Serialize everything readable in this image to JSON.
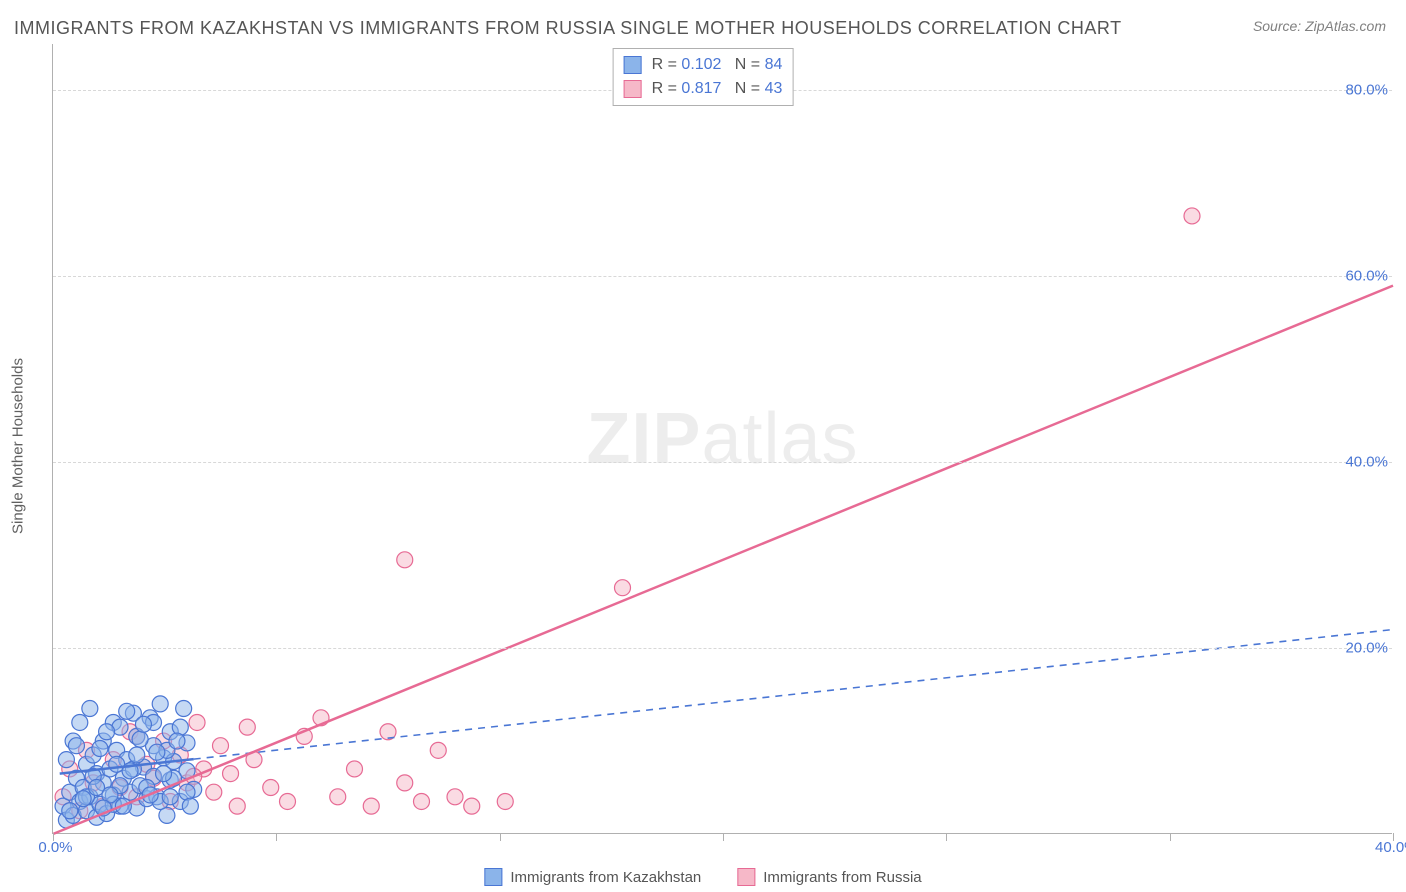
{
  "title": "IMMIGRANTS FROM KAZAKHSTAN VS IMMIGRANTS FROM RUSSIA SINGLE MOTHER HOUSEHOLDS CORRELATION CHART",
  "source_label": "Source: ZipAtlas.com",
  "ylabel": "Single Mother Households",
  "watermark": {
    "bold": "ZIP",
    "rest": "atlas"
  },
  "chart": {
    "type": "scatter-with-regression",
    "xlim": [
      0,
      40
    ],
    "ylim": [
      0,
      85
    ],
    "xtick_positions": [
      0,
      6.67,
      13.33,
      20,
      26.67,
      33.33,
      40
    ],
    "xtick_labels": [
      "0.0%",
      "",
      "",
      "",
      "",
      "",
      "40.0%"
    ],
    "ytick_positions": [
      20,
      40,
      60,
      80
    ],
    "ytick_labels": [
      "20.0%",
      "40.0%",
      "60.0%",
      "80.0%"
    ],
    "grid_color": "#d8d8d8",
    "axis_color": "#b0b0b0",
    "tick_label_color": "#4a76d4",
    "background_color": "#ffffff",
    "marker_radius": 8,
    "marker_stroke_width": 1.2,
    "line_width": 2.5,
    "series": [
      {
        "name": "Immigrants from Kazakhstan",
        "fill_color": "#8bb4ea",
        "stroke_color": "#4a76d4",
        "fill_opacity": 0.5,
        "R": "0.102",
        "N": "84",
        "regression": {
          "x1": 0.2,
          "y1": 6.5,
          "x2": 40,
          "y2": 22,
          "dashed": true
        },
        "line_solid_until_x": 4.2,
        "points": [
          [
            0.3,
            3.0
          ],
          [
            0.4,
            1.5
          ],
          [
            0.5,
            4.5
          ],
          [
            0.6,
            2.0
          ],
          [
            0.7,
            6.0
          ],
          [
            0.8,
            3.5
          ],
          [
            0.9,
            5.0
          ],
          [
            1.0,
            2.5
          ],
          [
            1.0,
            7.5
          ],
          [
            1.1,
            4.0
          ],
          [
            1.2,
            8.5
          ],
          [
            1.3,
            1.8
          ],
          [
            1.3,
            6.5
          ],
          [
            1.4,
            3.2
          ],
          [
            1.5,
            10.0
          ],
          [
            1.5,
            5.5
          ],
          [
            1.6,
            2.2
          ],
          [
            1.7,
            7.0
          ],
          [
            1.8,
            12.0
          ],
          [
            1.8,
            4.2
          ],
          [
            1.9,
            9.0
          ],
          [
            2.0,
            3.0
          ],
          [
            2.0,
            11.5
          ],
          [
            2.1,
            6.0
          ],
          [
            2.2,
            8.0
          ],
          [
            2.3,
            4.5
          ],
          [
            2.4,
            13.0
          ],
          [
            2.5,
            2.8
          ],
          [
            2.5,
            10.5
          ],
          [
            2.6,
            5.2
          ],
          [
            2.7,
            7.2
          ],
          [
            2.8,
            3.8
          ],
          [
            2.9,
            12.5
          ],
          [
            3.0,
            6.2
          ],
          [
            3.0,
            9.5
          ],
          [
            3.1,
            4.0
          ],
          [
            3.2,
            14.0
          ],
          [
            3.3,
            8.2
          ],
          [
            3.4,
            2.0
          ],
          [
            3.5,
            11.0
          ],
          [
            3.5,
            5.8
          ],
          [
            3.6,
            7.8
          ],
          [
            3.8,
            3.5
          ],
          [
            3.9,
            13.5
          ],
          [
            4.0,
            6.8
          ],
          [
            4.0,
            9.8
          ],
          [
            4.2,
            4.8
          ],
          [
            0.4,
            8.0
          ],
          [
            0.6,
            10.0
          ],
          [
            0.8,
            12.0
          ],
          [
            1.0,
            4.0
          ],
          [
            1.2,
            6.2
          ],
          [
            1.4,
            9.2
          ],
          [
            1.6,
            11.0
          ],
          [
            1.8,
            3.2
          ],
          [
            2.0,
            5.2
          ],
          [
            2.2,
            13.2
          ],
          [
            2.4,
            7.0
          ],
          [
            2.6,
            10.2
          ],
          [
            2.8,
            5.0
          ],
          [
            3.0,
            12.0
          ],
          [
            3.2,
            3.5
          ],
          [
            3.4,
            9.0
          ],
          [
            3.6,
            6.0
          ],
          [
            3.8,
            11.5
          ],
          [
            4.0,
            4.5
          ],
          [
            0.5,
            2.5
          ],
          [
            0.9,
            3.8
          ],
          [
            1.3,
            5.0
          ],
          [
            1.7,
            4.2
          ],
          [
            2.1,
            3.0
          ],
          [
            2.5,
            8.5
          ],
          [
            2.9,
            4.2
          ],
          [
            3.3,
            6.5
          ],
          [
            3.7,
            10.0
          ],
          [
            4.1,
            3.0
          ],
          [
            1.1,
            13.5
          ],
          [
            1.9,
            7.5
          ],
          [
            2.7,
            11.8
          ],
          [
            3.5,
            4.0
          ],
          [
            0.7,
            9.5
          ],
          [
            1.5,
            2.8
          ],
          [
            2.3,
            6.8
          ],
          [
            3.1,
            8.8
          ]
        ]
      },
      {
        "name": "Immigrants from Russia",
        "fill_color": "#f6b8c8",
        "stroke_color": "#e76a94",
        "fill_opacity": 0.5,
        "R": "0.817",
        "N": "43",
        "regression": {
          "x1": 0,
          "y1": 0,
          "x2": 40,
          "y2": 59,
          "dashed": false
        },
        "points": [
          [
            0.3,
            4.0
          ],
          [
            0.5,
            7.0
          ],
          [
            0.8,
            2.5
          ],
          [
            1.0,
            9.0
          ],
          [
            1.2,
            5.5
          ],
          [
            1.5,
            3.0
          ],
          [
            1.8,
            8.0
          ],
          [
            2.0,
            5.0
          ],
          [
            2.3,
            11.0
          ],
          [
            2.5,
            4.0
          ],
          [
            2.8,
            7.5
          ],
          [
            3.0,
            6.0
          ],
          [
            3.3,
            10.0
          ],
          [
            3.5,
            3.5
          ],
          [
            3.8,
            8.5
          ],
          [
            4.0,
            5.5
          ],
          [
            4.3,
            12.0
          ],
          [
            4.5,
            7.0
          ],
          [
            4.8,
            4.5
          ],
          [
            5.0,
            9.5
          ],
          [
            5.3,
            6.5
          ],
          [
            5.5,
            3.0
          ],
          [
            5.8,
            11.5
          ],
          [
            6.0,
            8.0
          ],
          [
            6.5,
            5.0
          ],
          [
            7.0,
            3.5
          ],
          [
            7.5,
            10.5
          ],
          [
            8.0,
            12.5
          ],
          [
            8.5,
            4.0
          ],
          [
            9.0,
            7.0
          ],
          [
            9.5,
            3.0
          ],
          [
            10.0,
            11.0
          ],
          [
            10.5,
            5.5
          ],
          [
            11.0,
            3.5
          ],
          [
            11.5,
            9.0
          ],
          [
            12.0,
            4.0
          ],
          [
            12.5,
            3.0
          ],
          [
            13.5,
            3.5
          ],
          [
            10.5,
            29.5
          ],
          [
            17.0,
            26.5
          ],
          [
            2.5,
            10.5
          ],
          [
            4.2,
            6.2
          ],
          [
            34.0,
            66.5
          ]
        ]
      }
    ]
  },
  "legend_bottom": [
    {
      "label": "Immigrants from Kazakhstan",
      "fill": "#8bb4ea",
      "stroke": "#4a76d4"
    },
    {
      "label": "Immigrants from Russia",
      "fill": "#f6b8c8",
      "stroke": "#e76a94"
    }
  ]
}
